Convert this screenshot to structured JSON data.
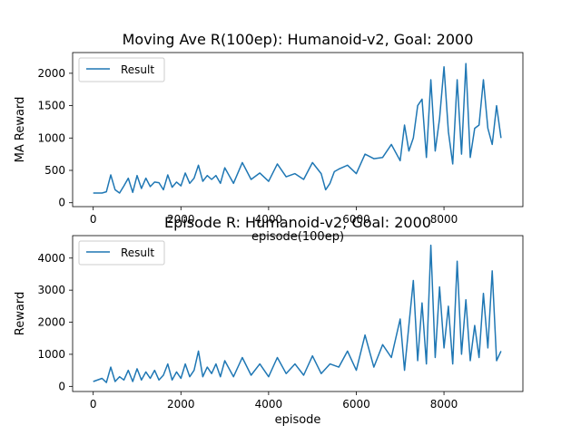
{
  "chart_data": [
    {
      "type": "line",
      "title": "Moving Ave R(100ep): Humanoid-v2, Goal: 2000",
      "xlabel": "episode(100ep)",
      "ylabel": "MA Reward",
      "xlim": [
        -470,
        9800
      ],
      "ylim": [
        -60,
        2320
      ],
      "xticks": [
        0,
        2000,
        4000,
        6000,
        8000
      ],
      "xtick_labels": [
        "0",
        "2000",
        "4000",
        "6000",
        "8000"
      ],
      "yticks": [
        0,
        500,
        1000,
        1500,
        2000
      ],
      "ytick_labels": [
        "0",
        "500",
        "1000",
        "1500",
        "2000"
      ],
      "grid": false,
      "legend": "top-left",
      "series": [
        {
          "name": "Result",
          "color": "#1f77b4",
          "x": [
            0,
            200,
            300,
            400,
            500,
            600,
            700,
            800,
            900,
            1000,
            1100,
            1200,
            1300,
            1400,
            1500,
            1600,
            1700,
            1800,
            1900,
            2000,
            2100,
            2200,
            2300,
            2400,
            2500,
            2600,
            2700,
            2800,
            2900,
            3000,
            3200,
            3400,
            3600,
            3800,
            4000,
            4200,
            4400,
            4600,
            4800,
            5000,
            5200,
            5300,
            5400,
            5500,
            5600,
            5800,
            6000,
            6200,
            6400,
            6600,
            6800,
            7000,
            7100,
            7200,
            7300,
            7400,
            7500,
            7600,
            7700,
            7800,
            7900,
            8000,
            8100,
            8200,
            8300,
            8400,
            8500,
            8600,
            8700,
            8800,
            8900,
            9000,
            9100,
            9200,
            9300
          ],
          "values": [
            150,
            150,
            170,
            430,
            200,
            150,
            260,
            380,
            160,
            420,
            220,
            380,
            250,
            320,
            310,
            200,
            430,
            240,
            320,
            260,
            460,
            300,
            380,
            580,
            330,
            420,
            360,
            420,
            300,
            540,
            300,
            620,
            360,
            460,
            330,
            600,
            400,
            450,
            360,
            620,
            450,
            200,
            300,
            480,
            520,
            580,
            450,
            750,
            680,
            700,
            900,
            650,
            1200,
            800,
            1000,
            1500,
            1600,
            700,
            1900,
            800,
            1300,
            2100,
            1100,
            600,
            1900,
            750,
            2150,
            700,
            1150,
            1200,
            1900,
            1150,
            900,
            1500,
            1000
          ]
        }
      ]
    },
    {
      "type": "line",
      "title": "Episode R: Humanoid-v2, Goal: 2000",
      "xlabel": "episode",
      "ylabel": "Reward",
      "xlim": [
        -470,
        9800
      ],
      "ylim": [
        -160,
        4700
      ],
      "xticks": [
        0,
        2000,
        4000,
        6000,
        8000
      ],
      "xtick_labels": [
        "0",
        "2000",
        "4000",
        "6000",
        "8000"
      ],
      "yticks": [
        0,
        1000,
        2000,
        3000,
        4000
      ],
      "ytick_labels": [
        "0",
        "1000",
        "2000",
        "3000",
        "4000"
      ],
      "grid": false,
      "legend": "top-left",
      "series": [
        {
          "name": "Result",
          "color": "#1f77b4",
          "x": [
            0,
            200,
            300,
            400,
            500,
            600,
            700,
            800,
            900,
            1000,
            1100,
            1200,
            1300,
            1400,
            1500,
            1600,
            1700,
            1800,
            1900,
            2000,
            2100,
            2200,
            2300,
            2400,
            2500,
            2600,
            2700,
            2800,
            2900,
            3000,
            3200,
            3400,
            3600,
            3800,
            4000,
            4200,
            4400,
            4600,
            4800,
            5000,
            5200,
            5400,
            5600,
            5800,
            6000,
            6200,
            6400,
            6600,
            6800,
            7000,
            7100,
            7200,
            7300,
            7400,
            7500,
            7600,
            7700,
            7800,
            7900,
            8000,
            8100,
            8200,
            8300,
            8400,
            8500,
            8600,
            8700,
            8800,
            8900,
            9000,
            9100,
            9200,
            9300
          ],
          "values": [
            150,
            250,
            120,
            600,
            150,
            300,
            200,
            500,
            150,
            550,
            200,
            450,
            250,
            500,
            200,
            350,
            700,
            200,
            450,
            250,
            700,
            300,
            500,
            1100,
            300,
            600,
            400,
            700,
            300,
            800,
            300,
            900,
            350,
            700,
            300,
            900,
            400,
            700,
            350,
            950,
            400,
            700,
            600,
            1100,
            500,
            1600,
            600,
            1300,
            900,
            2100,
            500,
            1900,
            3300,
            800,
            2600,
            700,
            4400,
            900,
            3100,
            1200,
            2500,
            700,
            3900,
            1000,
            2700,
            800,
            1900,
            900,
            2900,
            1200,
            3600,
            800,
            1100
          ]
        }
      ]
    }
  ]
}
